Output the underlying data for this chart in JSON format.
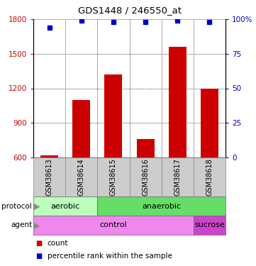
{
  "title": "GDS1448 / 246550_at",
  "samples": [
    "GSM38613",
    "GSM38614",
    "GSM38615",
    "GSM38616",
    "GSM38617",
    "GSM38618"
  ],
  "counts": [
    620,
    1100,
    1320,
    760,
    1560,
    1200
  ],
  "percentiles": [
    94,
    99,
    98,
    98,
    99,
    98
  ],
  "ylim_left": [
    600,
    1800
  ],
  "ylim_right": [
    0,
    100
  ],
  "yticks_left": [
    600,
    900,
    1200,
    1500,
    1800
  ],
  "yticks_right": [
    0,
    25,
    50,
    75,
    100
  ],
  "bar_color": "#cc0000",
  "dot_color": "#0000cc",
  "protocol_labels": [
    [
      "aerobic",
      0,
      2
    ],
    [
      "anaerobic",
      2,
      6
    ]
  ],
  "protocol_colors": [
    "#bbffbb",
    "#66dd66"
  ],
  "agent_labels": [
    [
      "control",
      0,
      5
    ],
    [
      "sucrose",
      5,
      6
    ]
  ],
  "agent_colors": [
    "#ee88ee",
    "#cc44cc"
  ],
  "sample_bg": "#cccccc",
  "grid_linestyle": "dotted"
}
